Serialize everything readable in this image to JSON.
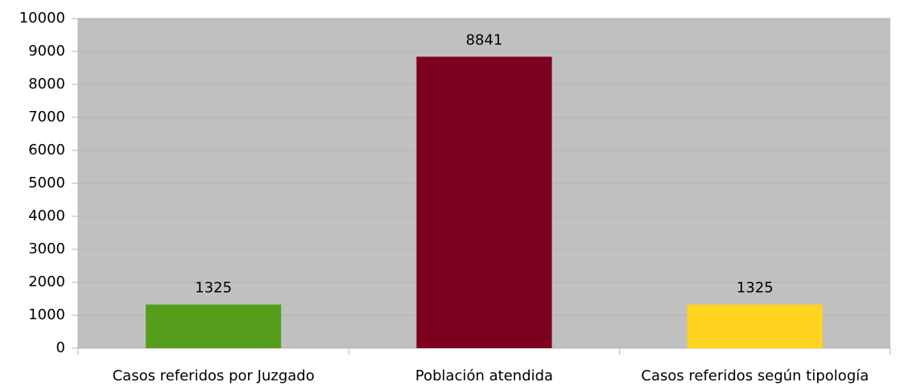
{
  "chart_data": {
    "type": "bar",
    "categories": [
      "Casos referidos por Juzgado",
      "Población atendida",
      "Casos referidos según tipología"
    ],
    "values": [
      1325,
      8841,
      1325
    ],
    "colors": [
      "#579d1c",
      "#7e0021",
      "#ffd320"
    ],
    "ylim": [
      0,
      10000
    ],
    "yticks": [
      0,
      1000,
      2000,
      3000,
      4000,
      5000,
      6000,
      7000,
      8000,
      9000,
      10000
    ],
    "grid": true,
    "data_labels": true
  }
}
